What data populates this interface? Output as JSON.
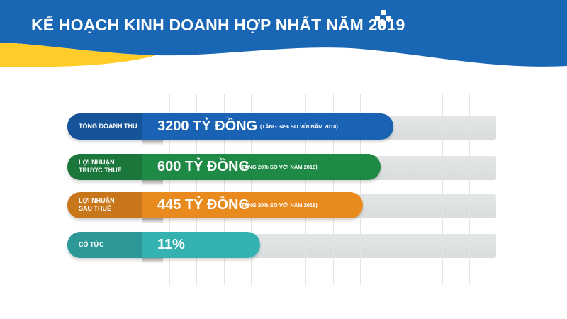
{
  "header": {
    "title": "KẾ HOẠCH KINH DOANH HỢP NHẤT NĂM 2019"
  },
  "colors": {
    "header_blue": "#1866b4",
    "header_yellow": "#ffcc29",
    "revenue": "#1a62b3",
    "profit_before_tax": "#1f8a45",
    "profit_after_tax": "#e98a1f",
    "dividend": "#34b2b1",
    "label_overlay": "rgba(0,0,0,0.14)"
  },
  "chart_data": {
    "type": "bar",
    "orientation": "horizontal",
    "categories": [
      "TỔNG DOANH THU",
      "LỢI NHUẬN TRƯỚC THUẾ",
      "LỢI NHUẬN SAU THUẾ",
      "CỔ TỨC"
    ],
    "rows": [
      {
        "label_lines": [
          "TỔNG DOANH THU"
        ],
        "value_text": "3200 TỶ ĐỒNG",
        "note": "(TĂNG 34% SO VỚI NĂM 2018)"
      },
      {
        "label_lines": [
          "LỢI NHUẬN",
          "TRƯỚC THUẾ"
        ],
        "value_text": "600 TỶ ĐỒNG",
        "note": "(TĂNG 20% SO VỚI NĂM 2018)"
      },
      {
        "label_lines": [
          "LỢI NHUẬN",
          "SAU THUẾ"
        ],
        "value_text": "445 TỶ ĐỒNG",
        "note": "(TĂNG 20% SO VỚI NĂM 2018)"
      },
      {
        "label_lines": [
          "CỔ TỨC"
        ],
        "value_text": "11%",
        "note": ""
      }
    ],
    "relative_fill": [
      0.76,
      0.73,
      0.69,
      0.45
    ],
    "grid": true,
    "legend": "none"
  }
}
